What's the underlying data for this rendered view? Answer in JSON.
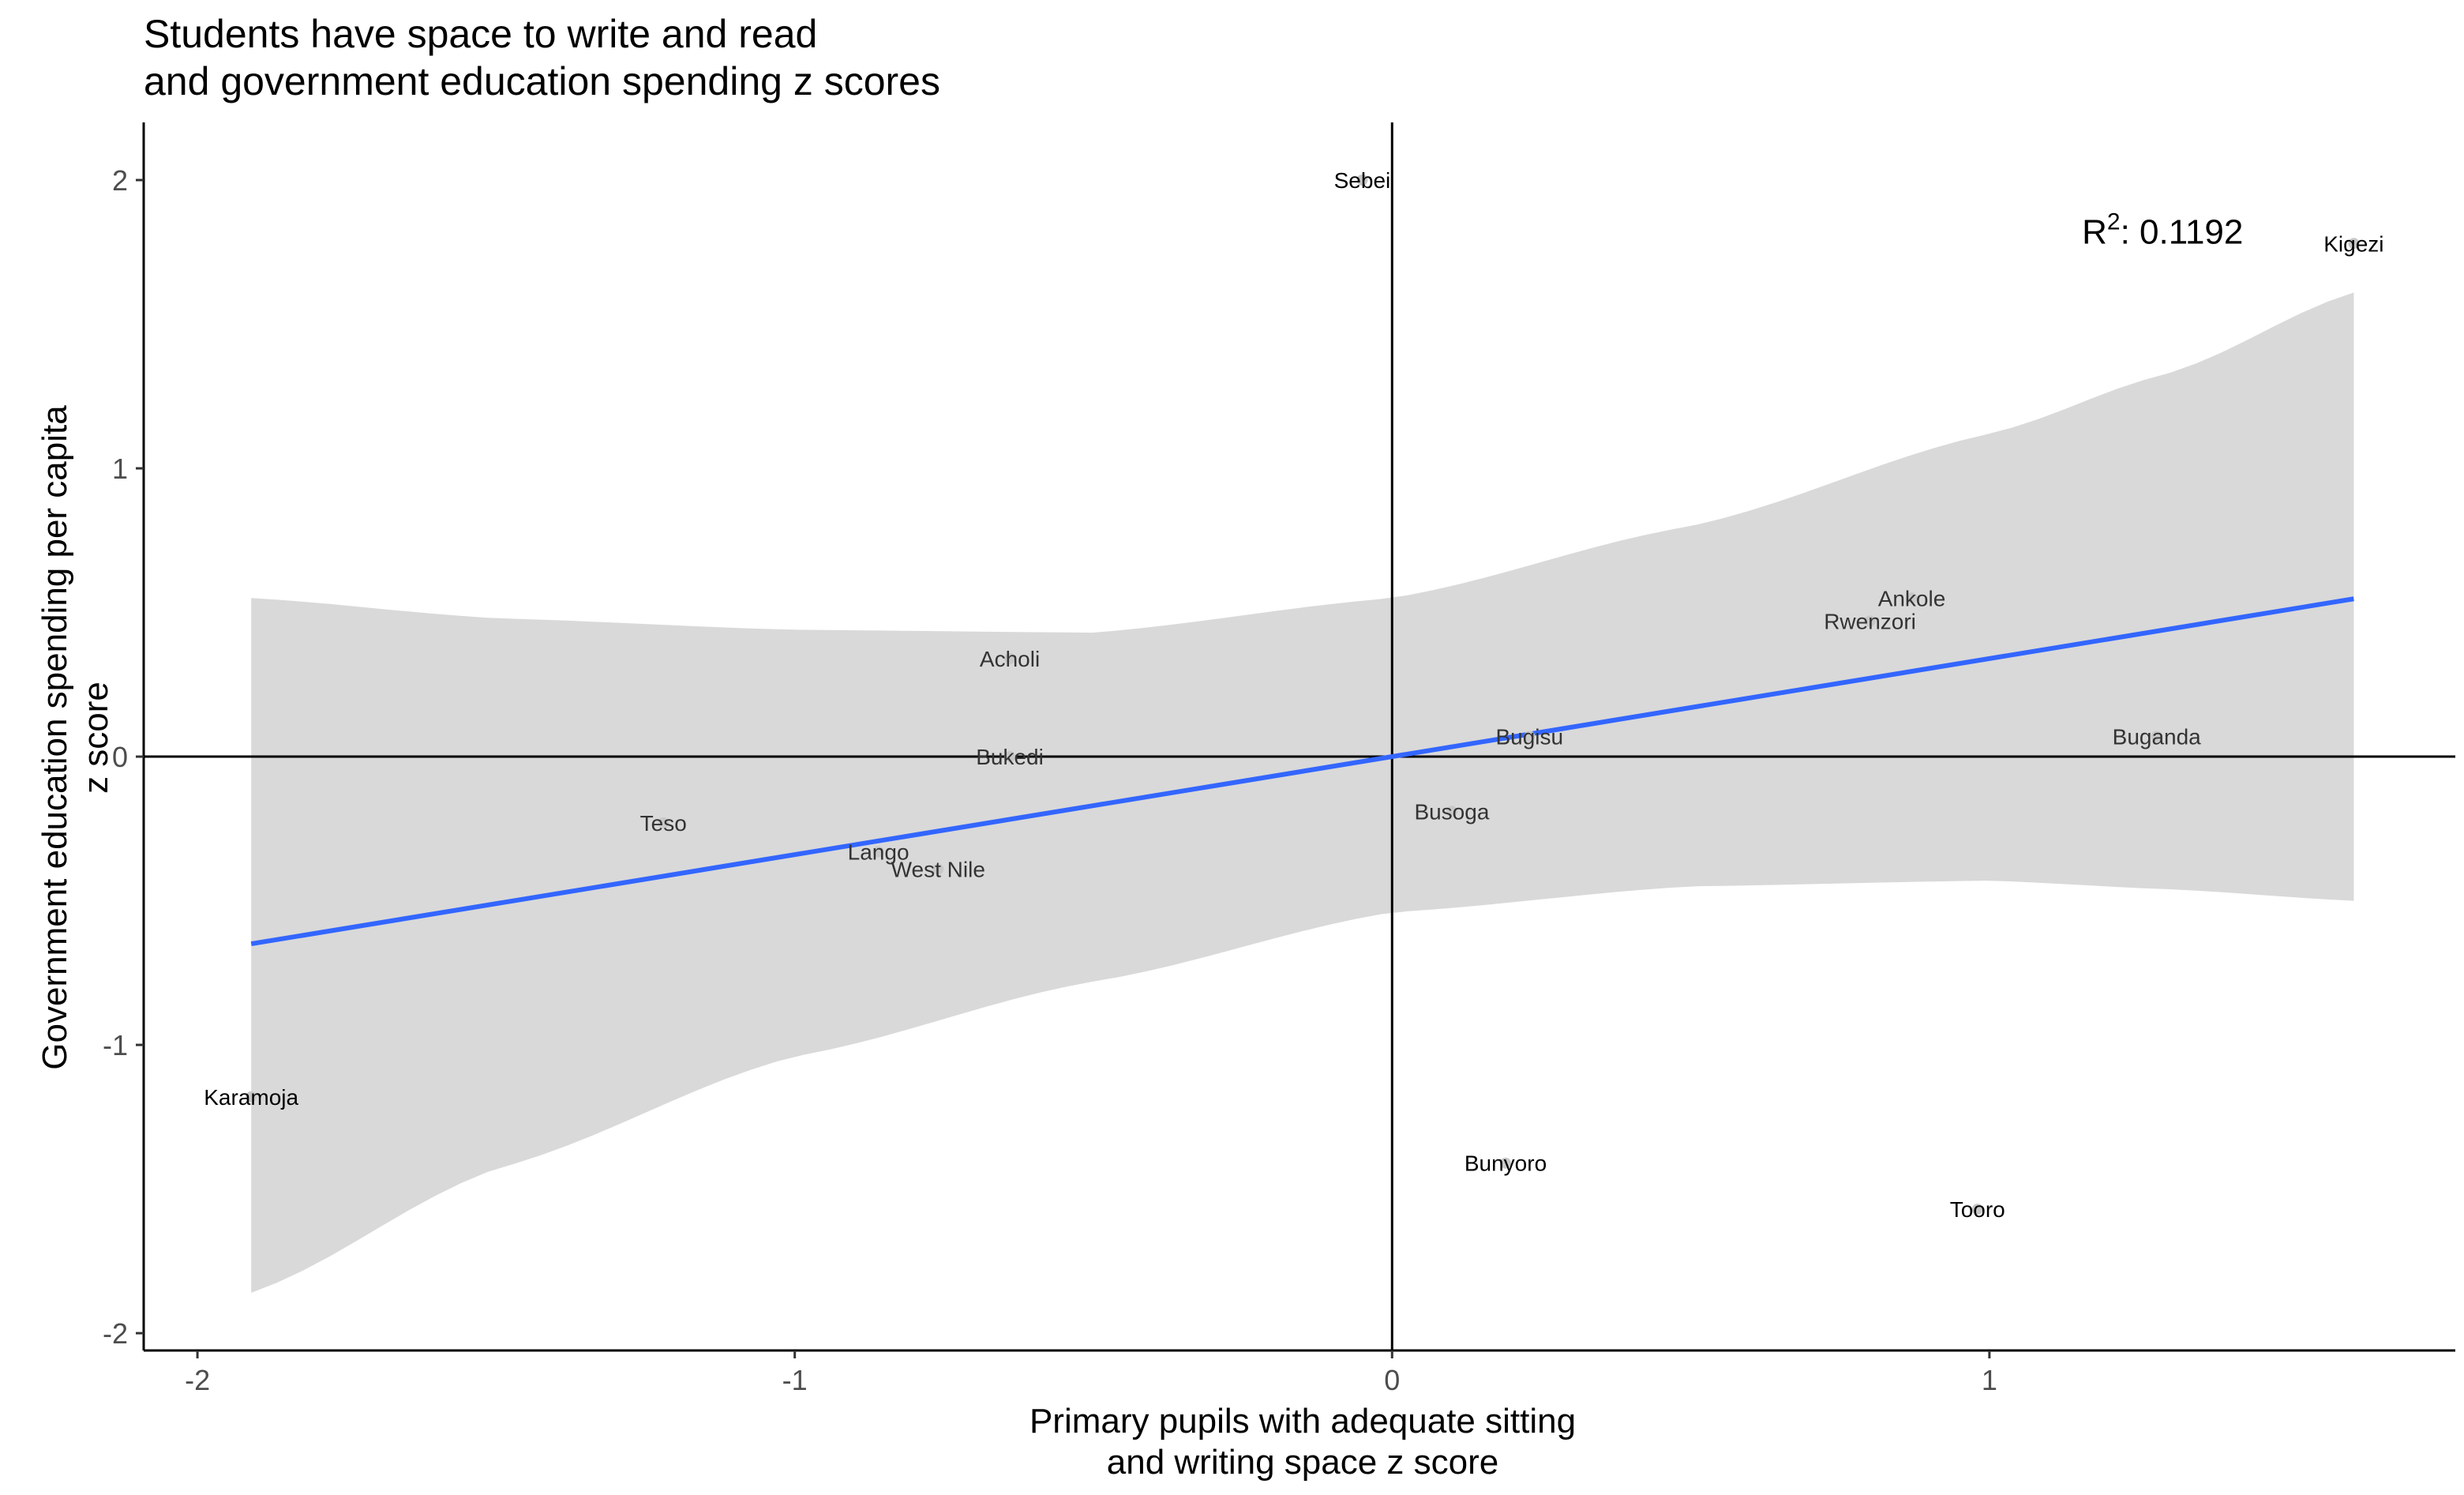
{
  "title": [
    "Students have space to write and read",
    "and government education spending z scores"
  ],
  "x_axis_title": [
    "Primary pupils with adequate sitting",
    "and writing space z score"
  ],
  "y_axis_title": [
    "Government education spending per capita",
    "z score"
  ],
  "annotation": {
    "prefix": "R",
    "superscript": "2",
    "text": ": 0.1192",
    "x": 1.29,
    "y": 1.78
  },
  "colors": {
    "fit_line": "#3366ff",
    "ribbon": "#d9d9d9",
    "point": "#c8c8c8",
    "point_label": "#000000",
    "axis": "#000000",
    "tick_label": "#4d4d4d"
  },
  "chart_data": {
    "type": "scatter",
    "xlim": [
      -2.09,
      1.78
    ],
    "ylim": [
      -2.06,
      2.2
    ],
    "x_ticks": [
      -2,
      -1,
      0,
      1
    ],
    "y_ticks": [
      -2,
      -1,
      0,
      1,
      2
    ],
    "x_tick_labels": [
      "-2",
      "-1",
      "0",
      "1"
    ],
    "y_tick_labels": [
      "-2",
      "-1",
      "0",
      "1",
      "2"
    ],
    "reference_lines": {
      "x": 0,
      "y": 0
    },
    "points": [
      {
        "label": "Sebei",
        "x": -0.05,
        "y": 2.0
      },
      {
        "label": "Kigezi",
        "x": 1.61,
        "y": 1.78
      },
      {
        "label": "Ankole",
        "x": 0.87,
        "y": 0.55
      },
      {
        "label": "Rwenzori",
        "x": 0.8,
        "y": 0.47
      },
      {
        "label": "Acholi",
        "x": -0.64,
        "y": 0.34
      },
      {
        "label": "Bugisu",
        "x": 0.23,
        "y": 0.07
      },
      {
        "label": "Buganda",
        "x": 1.28,
        "y": 0.07
      },
      {
        "label": "Bukedi",
        "x": -0.64,
        "y": 0.0
      },
      {
        "label": "Busoga",
        "x": 0.1,
        "y": -0.19
      },
      {
        "label": "Teso",
        "x": -1.22,
        "y": -0.23
      },
      {
        "label": "Lango",
        "x": -0.86,
        "y": -0.33
      },
      {
        "label": "West Nile",
        "x": -0.76,
        "y": -0.39
      },
      {
        "label": "Karamoja",
        "x": -1.91,
        "y": -1.18
      },
      {
        "label": "Bunyoro",
        "x": 0.19,
        "y": -1.41
      },
      {
        "label": "Tooro",
        "x": 0.98,
        "y": -1.57
      }
    ],
    "label_colors": {
      "dark": [
        "Sebei",
        "Kigezi",
        "Karamoja",
        "Bunyoro",
        "Tooro"
      ],
      "normal": [
        "Ankole",
        "Rwenzori",
        "Acholi",
        "Bugisu",
        "Buganda",
        "Bukedi",
        "Busoga",
        "Teso",
        "Lango",
        "West Nile"
      ]
    },
    "fit": {
      "type": "linear",
      "slope": 0.34,
      "intercept": 0.0,
      "x_range": [
        -1.91,
        1.61
      ],
      "ci": [
        {
          "x": -1.91,
          "lower": -1.86,
          "upper": 0.55
        },
        {
          "x": -1.5,
          "lower": -1.43,
          "upper": 0.48
        },
        {
          "x": -1.0,
          "lower": -1.04,
          "upper": 0.44
        },
        {
          "x": -0.5,
          "lower": -0.78,
          "upper": 0.43
        },
        {
          "x": 0.0,
          "lower": -0.54,
          "upper": 0.55
        },
        {
          "x": 0.5,
          "lower": -0.45,
          "upper": 0.8
        },
        {
          "x": 1.0,
          "lower": -0.43,
          "upper": 1.12
        },
        {
          "x": 1.3,
          "lower": -0.46,
          "upper": 1.33
        },
        {
          "x": 1.61,
          "lower": -0.5,
          "upper": 1.61
        }
      ]
    }
  }
}
